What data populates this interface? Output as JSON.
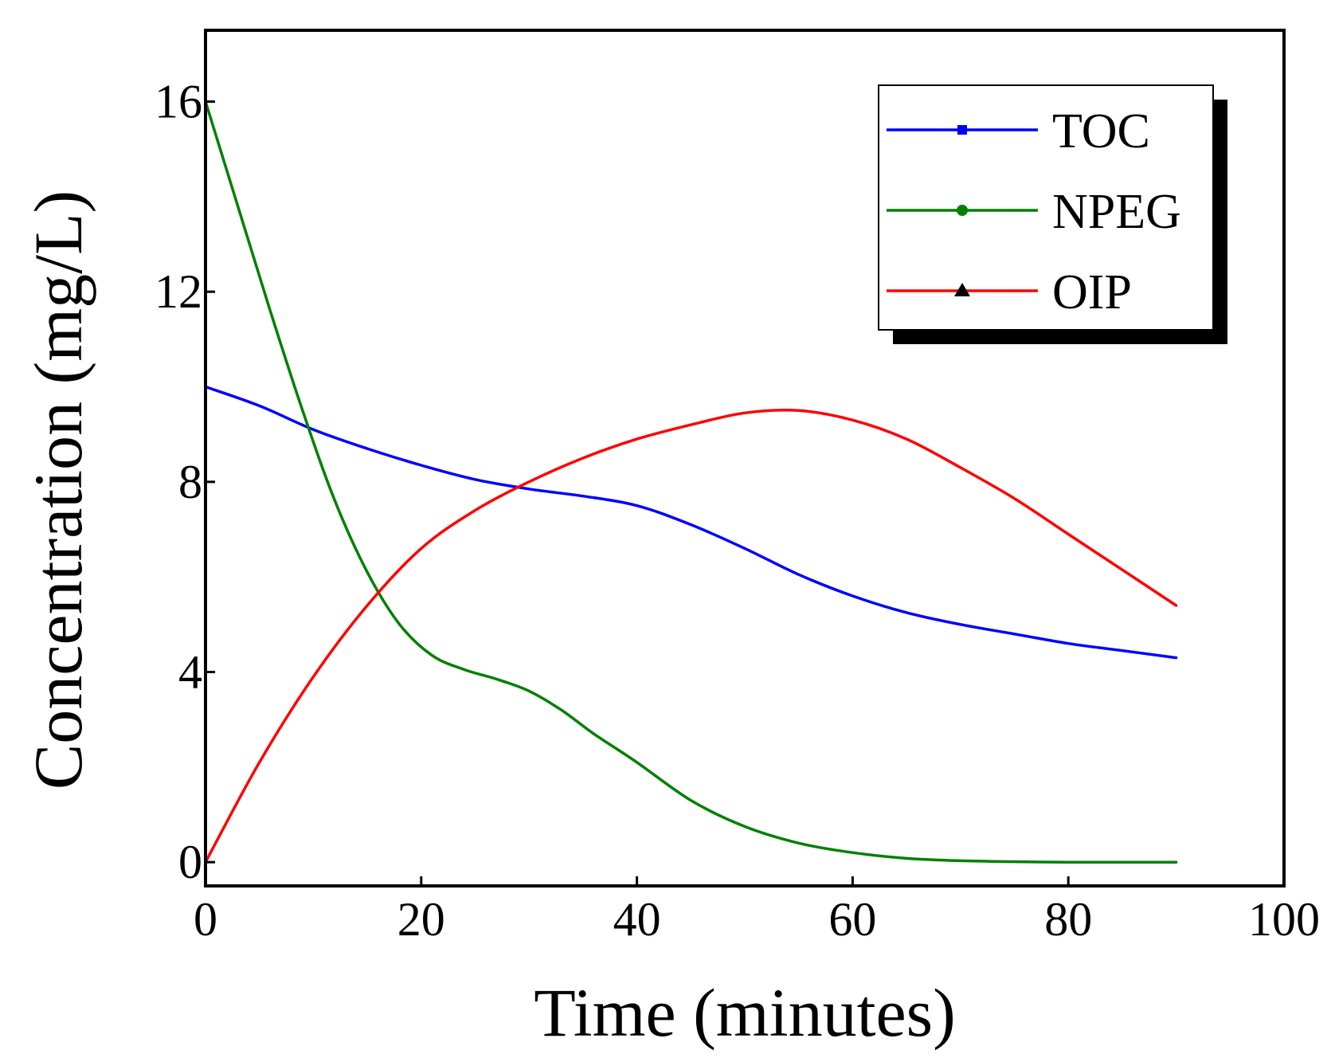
{
  "chart_data": {
    "type": "line",
    "title": "",
    "xlabel": "Time (minutes)",
    "ylabel": "Concentration (mg/L)",
    "xlim": [
      0,
      100
    ],
    "ylim": [
      -0.5,
      17.5
    ],
    "xticks": [
      0,
      20,
      40,
      60,
      80,
      100
    ],
    "yticks": [
      0,
      4,
      8,
      12,
      16
    ],
    "grid": false,
    "legend_position": "top-right",
    "series": [
      {
        "name": "TOC",
        "color": "#0000ff",
        "marker": "square",
        "x": [
          0,
          5,
          10,
          15,
          20,
          25,
          30,
          35,
          40,
          45,
          50,
          55,
          60,
          65,
          70,
          75,
          80,
          85,
          90
        ],
        "values": [
          10.0,
          9.6,
          9.1,
          8.7,
          8.35,
          8.05,
          7.85,
          7.7,
          7.5,
          7.1,
          6.6,
          6.05,
          5.6,
          5.25,
          5.0,
          4.8,
          4.6,
          4.45,
          4.3
        ]
      },
      {
        "name": "NPEG",
        "color": "#008000",
        "marker": "circle",
        "x": [
          0,
          3,
          6,
          9,
          12,
          15,
          18,
          21,
          24,
          27,
          30,
          33,
          36,
          40,
          45,
          50,
          55,
          60,
          65,
          70,
          75,
          80,
          85,
          90
        ],
        "values": [
          16.0,
          13.8,
          11.6,
          9.5,
          7.6,
          6.1,
          5.0,
          4.35,
          4.05,
          3.85,
          3.6,
          3.2,
          2.7,
          2.1,
          1.3,
          0.75,
          0.4,
          0.2,
          0.08,
          0.03,
          0.01,
          0.0,
          0.0,
          0.0
        ]
      },
      {
        "name": "OIP",
        "color": "#ff0000",
        "marker": "triangle",
        "x": [
          0,
          5,
          10,
          15,
          20,
          25,
          30,
          35,
          40,
          45,
          50,
          55,
          60,
          65,
          70,
          75,
          80,
          85,
          90
        ],
        "values": [
          0.0,
          2.1,
          3.9,
          5.4,
          6.6,
          7.4,
          8.0,
          8.5,
          8.9,
          9.2,
          9.45,
          9.5,
          9.3,
          8.9,
          8.3,
          7.65,
          6.9,
          6.15,
          5.4
        ]
      }
    ]
  }
}
